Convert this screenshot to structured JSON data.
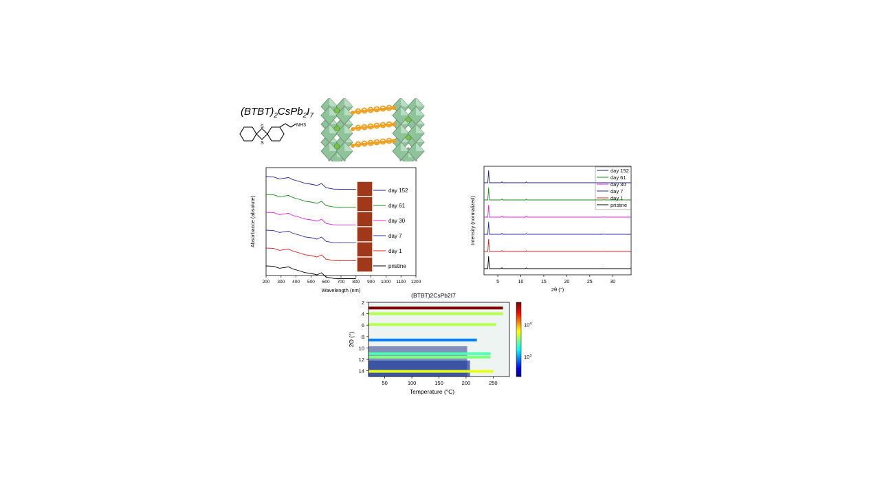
{
  "compound": {
    "formula": "(BTBT)2CsPb2I7",
    "ammonium_label": "NH3"
  },
  "chart_data": [
    {
      "type": "line",
      "title": "",
      "xlabel": "Wavelength (nm)",
      "ylabel": "Absorbance (absolute)",
      "xlim": [
        200,
        1200
      ],
      "xticks": [
        200,
        300,
        400,
        500,
        600,
        700,
        800,
        900,
        1000,
        1100,
        1200
      ],
      "legend_position": "right",
      "series": [
        {
          "name": "day 152",
          "color": "#1f1f8f"
        },
        {
          "name": "day 61",
          "color": "#1a8a1a"
        },
        {
          "name": "day 30",
          "color": "#e020e0"
        },
        {
          "name": "day 7",
          "color": "#2a2aa8"
        },
        {
          "name": "day 1",
          "color": "#e02020"
        },
        {
          "name": "pristine",
          "color": "#000000"
        }
      ],
      "x": [
        200,
        250,
        290,
        320,
        350,
        380,
        420,
        460,
        500,
        540,
        570,
        600,
        650,
        700,
        800
      ],
      "y_shape": [
        0.95,
        0.92,
        0.78,
        0.83,
        0.88,
        0.72,
        0.6,
        0.46,
        0.4,
        0.3,
        0.45,
        0.14,
        0.04,
        0.02,
        0.02
      ],
      "inset": "sample photographs"
    },
    {
      "type": "line",
      "title": "",
      "xlabel": "2θ (°)",
      "ylabel": "Intensity (normalized)",
      "xlim": [
        2,
        34
      ],
      "xticks": [
        5,
        10,
        15,
        20,
        25,
        30
      ],
      "legend_position": "top-right",
      "series": [
        {
          "name": "day 152",
          "color": "#1f1f8f"
        },
        {
          "name": "day 61",
          "color": "#1a8a1a"
        },
        {
          "name": "day 30",
          "color": "#e020e0"
        },
        {
          "name": "day 7",
          "color": "#2a2aa8"
        },
        {
          "name": "day 1",
          "color": "#e02020"
        },
        {
          "name": "pristine",
          "color": "#000000"
        }
      ],
      "peaks": [
        {
          "x": 3.0,
          "height": 1.0
        },
        {
          "x": 5.9,
          "height": 0.08
        },
        {
          "x": 11.2,
          "height": 0.06
        },
        {
          "x": 28.1,
          "height": 0.02
        }
      ]
    },
    {
      "type": "heatmap",
      "title": "(BTBT)2CsPb2I7",
      "xlabel": "Temperature (°C)",
      "ylabel": "2Θ (°)",
      "xlim": [
        20,
        280
      ],
      "ylim": [
        2,
        15
      ],
      "xticks": [
        50,
        100,
        150,
        200,
        250
      ],
      "yticks": [
        2,
        4,
        6,
        8,
        10,
        12,
        14
      ],
      "colorbar_ticks": [
        "10^4",
        "10^3"
      ],
      "colorscale": "jet",
      "bands": [
        {
          "two_theta": 3.0,
          "level": 1.0,
          "t_end": 268
        },
        {
          "two_theta": 4.0,
          "level": 0.55,
          "t_end": 268
        },
        {
          "two_theta": 5.9,
          "level": 0.55,
          "t_end": 255
        },
        {
          "two_theta": 8.6,
          "level": 0.25,
          "t_end": 220
        },
        {
          "two_theta": 11.0,
          "level": 0.45,
          "t_end": 245
        },
        {
          "two_theta": 11.6,
          "level": 0.5,
          "t_end": 245
        },
        {
          "two_theta": 14.1,
          "level": 0.6,
          "t_end": 250
        }
      ]
    }
  ]
}
